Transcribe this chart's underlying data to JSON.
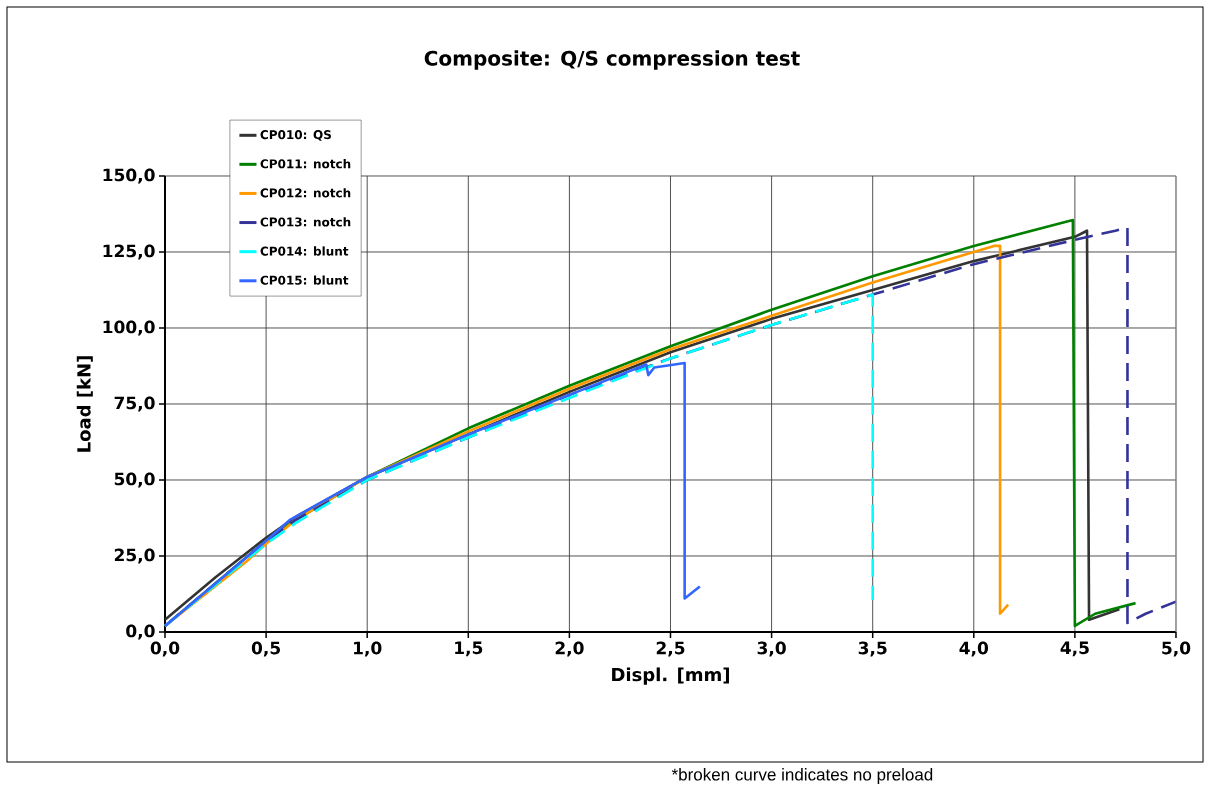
{
  "chart_data": {
    "type": "line",
    "title": "Composite: Q/S compression test",
    "xlabel": "Displ. [mm]",
    "ylabel": "Load [kN]",
    "xlim": [
      0,
      5
    ],
    "ylim": [
      0,
      150
    ],
    "xticks": [
      {
        "value": 0,
        "label": "0,0"
      },
      {
        "value": 0.5,
        "label": "0,5"
      },
      {
        "value": 1,
        "label": "1,0"
      },
      {
        "value": 1.5,
        "label": "1,5"
      },
      {
        "value": 2,
        "label": "2,0"
      },
      {
        "value": 2.5,
        "label": "2,5"
      },
      {
        "value": 3,
        "label": "3,0"
      },
      {
        "value": 3.5,
        "label": "3,5"
      },
      {
        "value": 4,
        "label": "4,0"
      },
      {
        "value": 4.5,
        "label": "4,5"
      },
      {
        "value": 5,
        "label": "5,0"
      }
    ],
    "yticks": [
      {
        "value": 0,
        "label": "0,0"
      },
      {
        "value": 25,
        "label": "25,0"
      },
      {
        "value": 50,
        "label": "50,0"
      },
      {
        "value": 75,
        "label": "75,0"
      },
      {
        "value": 100,
        "label": "100,0"
      },
      {
        "value": 125,
        "label": "125,0"
      },
      {
        "value": 150,
        "label": "150,0"
      }
    ],
    "grid": true,
    "legend": "top left",
    "marker": "none",
    "annotations": [
      "*broken curve indicates no preload"
    ],
    "series": [
      {
        "name": "CP010: QS",
        "color": "#333333",
        "line_style": "solid",
        "x": [
          0,
          0.25,
          0.5,
          0.65,
          1,
          1.5,
          2,
          2.5,
          3,
          3.5,
          4,
          4.5,
          4.56,
          4.57,
          4.72
        ],
        "values": [
          4,
          18,
          31,
          38,
          51,
          65,
          79,
          92,
          103,
          112.5,
          122,
          130,
          132,
          4,
          7.5
        ]
      },
      {
        "name": "CP011: notch",
        "color": "#008000",
        "line_style": "solid",
        "x": [
          0,
          0.5,
          0.65,
          1,
          1.5,
          2,
          2.5,
          3,
          3.5,
          4,
          4.4,
          4.49,
          4.5,
          4.6,
          4.8
        ],
        "values": [
          2,
          30,
          37,
          51,
          67,
          81,
          94,
          106,
          117,
          127,
          134,
          135.5,
          2,
          6,
          9.5
        ]
      },
      {
        "name": "CP012: notch",
        "color": "#ff9900",
        "line_style": "solid",
        "x": [
          0,
          0.4,
          0.5,
          0.65,
          1,
          1.5,
          2,
          2.5,
          3,
          3.5,
          4,
          4.1,
          4.13,
          4.13,
          4.17
        ],
        "values": [
          2,
          23,
          29,
          37,
          51,
          66,
          80,
          93,
          104,
          115,
          125,
          127,
          127,
          6,
          9
        ]
      },
      {
        "name": "CP013: notch",
        "color": "#333399",
        "line_style": "dashed",
        "x": [
          0,
          0.5,
          0.65,
          1,
          1.5,
          2,
          2.5,
          3,
          3.5,
          4,
          4.5,
          4.7,
          4.76,
          4.76,
          4.85,
          5
        ],
        "values": [
          2,
          30,
          37,
          50,
          64,
          78,
          90,
          101,
          111,
          121,
          129,
          132,
          133,
          3,
          6,
          10
        ]
      },
      {
        "name": "CP014: blunt",
        "color": "#00ffff",
        "line_style": "dashed",
        "x": [
          0,
          0.5,
          0.65,
          1,
          1.5,
          2,
          2.5,
          3,
          3.45,
          3.5,
          3.5
        ],
        "values": [
          2,
          29,
          36,
          50,
          64,
          77,
          90,
          101,
          110,
          111,
          10.5
        ]
      },
      {
        "name": "CP015: blunt",
        "color": "#3366ff",
        "line_style": "solid",
        "x": [
          0,
          0.5,
          0.62,
          1,
          1.5,
          2,
          2.38,
          2.39,
          2.42,
          2.57,
          2.57,
          2.645
        ],
        "values": [
          2,
          30,
          37,
          51,
          65,
          78,
          88,
          84.5,
          87,
          88.5,
          11,
          15
        ]
      }
    ]
  }
}
